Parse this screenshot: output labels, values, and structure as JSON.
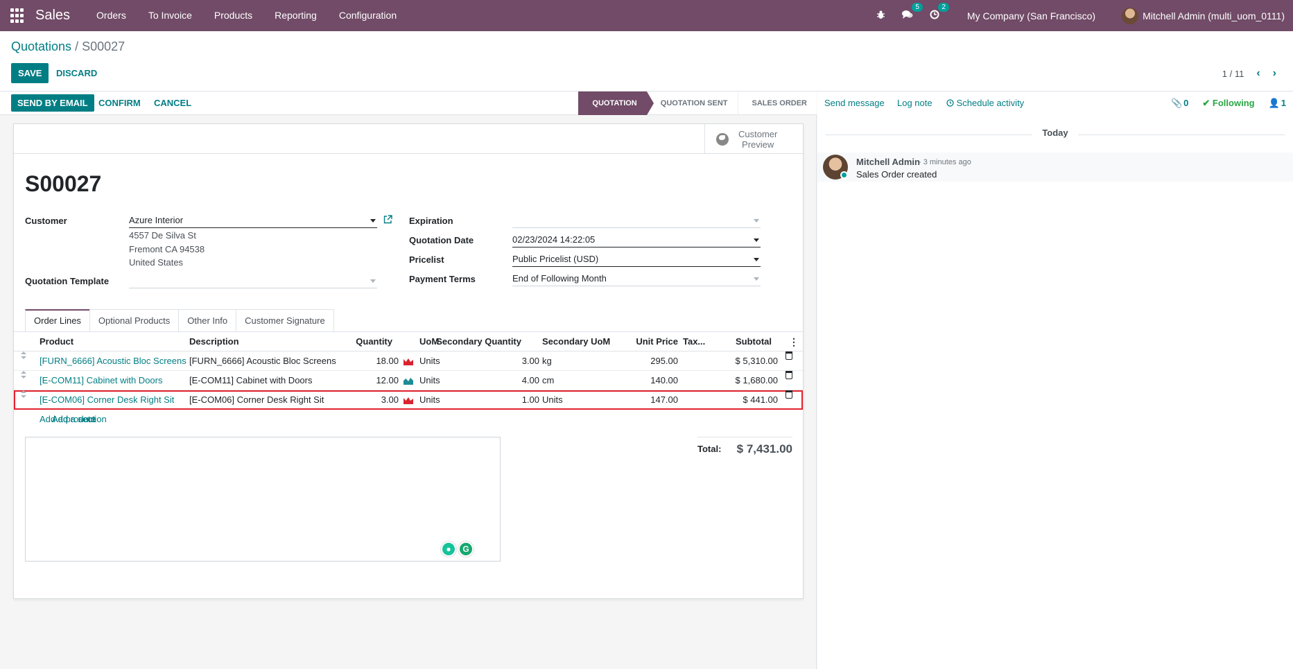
{
  "navbar": {
    "brand": "Sales",
    "menu": [
      "Orders",
      "To Invoice",
      "Products",
      "Reporting",
      "Configuration"
    ],
    "messages_count": "5",
    "activities_count": "2",
    "company": "My Company (San Francisco)",
    "user": "Mitchell Admin (multi_uom_0111)"
  },
  "control": {
    "breadcrumb_parent": "Quotations",
    "breadcrumb_sep": "/",
    "breadcrumb_current": "S00027",
    "save_label": "SAVE",
    "discard_label": "DISCARD",
    "pager": "1 / 11"
  },
  "statusbar": {
    "send_email": "SEND BY EMAIL",
    "confirm": "CONFIRM",
    "cancel": "CANCEL",
    "stages": [
      "QUOTATION",
      "QUOTATION SENT",
      "SALES ORDER"
    ]
  },
  "sheet": {
    "preview_line1": "Customer",
    "preview_line2": "Preview",
    "name": "S00027",
    "customer_label": "Customer",
    "customer_value": "Azure Interior",
    "address": [
      "4557 De Silva St",
      "Fremont CA 94538",
      "United States"
    ],
    "template_label": "Quotation Template",
    "template_value": "",
    "expiration_label": "Expiration",
    "expiration_value": "",
    "quotation_date_label": "Quotation Date",
    "quotation_date_value": "02/23/2024 14:22:05",
    "pricelist_label": "Pricelist",
    "pricelist_value": "Public Pricelist (USD)",
    "payment_terms_label": "Payment Terms",
    "payment_terms_value": "End of Following Month"
  },
  "tabs": [
    "Order Lines",
    "Optional Products",
    "Other Info",
    "Customer Signature"
  ],
  "table": {
    "headers": [
      "Product",
      "Description",
      "Quantity",
      "UoM",
      "Secondary Quantity",
      "Secondary UoM",
      "Unit Price",
      "Tax...",
      "Subtotal"
    ],
    "rows": [
      {
        "product": "[FURN_6666] Acoustic Bloc Screens",
        "description": "[FURN_6666] Acoustic Bloc Screens",
        "quantity": "18.00",
        "uom": "Units",
        "sec_qty": "3.00",
        "sec_uom": "kg",
        "price": "295.00",
        "tax": "",
        "subtotal": "$ 5,310.00",
        "chart_color": "#d9232e"
      },
      {
        "product": "[E-COM11] Cabinet with Doors",
        "description": "[E-COM11] Cabinet with Doors",
        "quantity": "12.00",
        "uom": "Units",
        "sec_qty": "4.00",
        "sec_uom": "cm",
        "price": "140.00",
        "tax": "",
        "subtotal": "$ 1,680.00",
        "chart_color": "#1d8c94"
      },
      {
        "product": "[E-COM06] Corner Desk Right Sit",
        "description": "[E-COM06] Corner Desk Right Sit",
        "quantity": "3.00",
        "uom": "Units",
        "sec_qty": "1.00",
        "sec_uom": "Units",
        "price": "147.00",
        "tax": "",
        "subtotal": "$ 441.00",
        "chart_color": "#d9232e"
      }
    ],
    "add_product": "Add a product",
    "add_section": "Add a section",
    "add_note": "Add a note"
  },
  "totals": {
    "label": "Total:",
    "value": "$ 7,431.00"
  },
  "chatter": {
    "send_message": "Send message",
    "log_note": "Log note",
    "schedule_activity": "Schedule activity",
    "attachments": "0",
    "following": "Following",
    "followers": "1",
    "today": "Today",
    "message_author": "Mitchell Admin",
    "message_time": "- 3 minutes ago",
    "message_body": "Sales Order created"
  },
  "colors": {
    "brand": "#714b67",
    "accent": "#017e84"
  }
}
